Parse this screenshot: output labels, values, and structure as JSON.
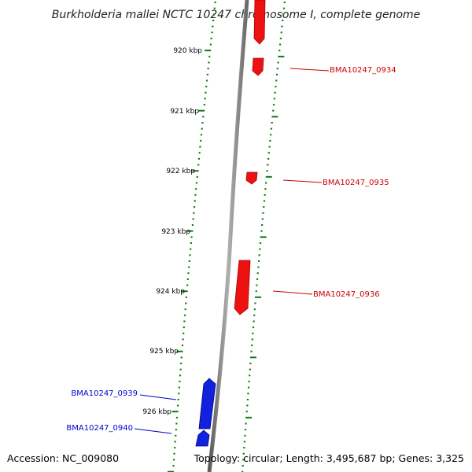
{
  "title": "Burkholderia mallei NCTC 10247 chromosome I, complete genome",
  "accession": "Accession: NC_009080",
  "topology": "Topology: circular; Length: 3,495,687 bp; Genes: 3,325",
  "colors": {
    "forward_gene": "#ee1111",
    "reverse_gene": "#1122dd",
    "tick": "#117711",
    "backbone": "#888888"
  },
  "position_labels": [
    "920 kbp",
    "921 kbp",
    "922 kbp",
    "923 kbp",
    "924 kbp",
    "925 kbp",
    "926 kbp"
  ],
  "genes": [
    {
      "name": "",
      "strand": "+"
    },
    {
      "name": "BMA10247_0934",
      "strand": "+"
    },
    {
      "name": "BMA10247_0935",
      "strand": "+"
    },
    {
      "name": "BMA10247_0936",
      "strand": "+"
    },
    {
      "name": "BMA10247_0939",
      "strand": "-"
    },
    {
      "name": "BMA10247_0940",
      "strand": "-"
    }
  ]
}
